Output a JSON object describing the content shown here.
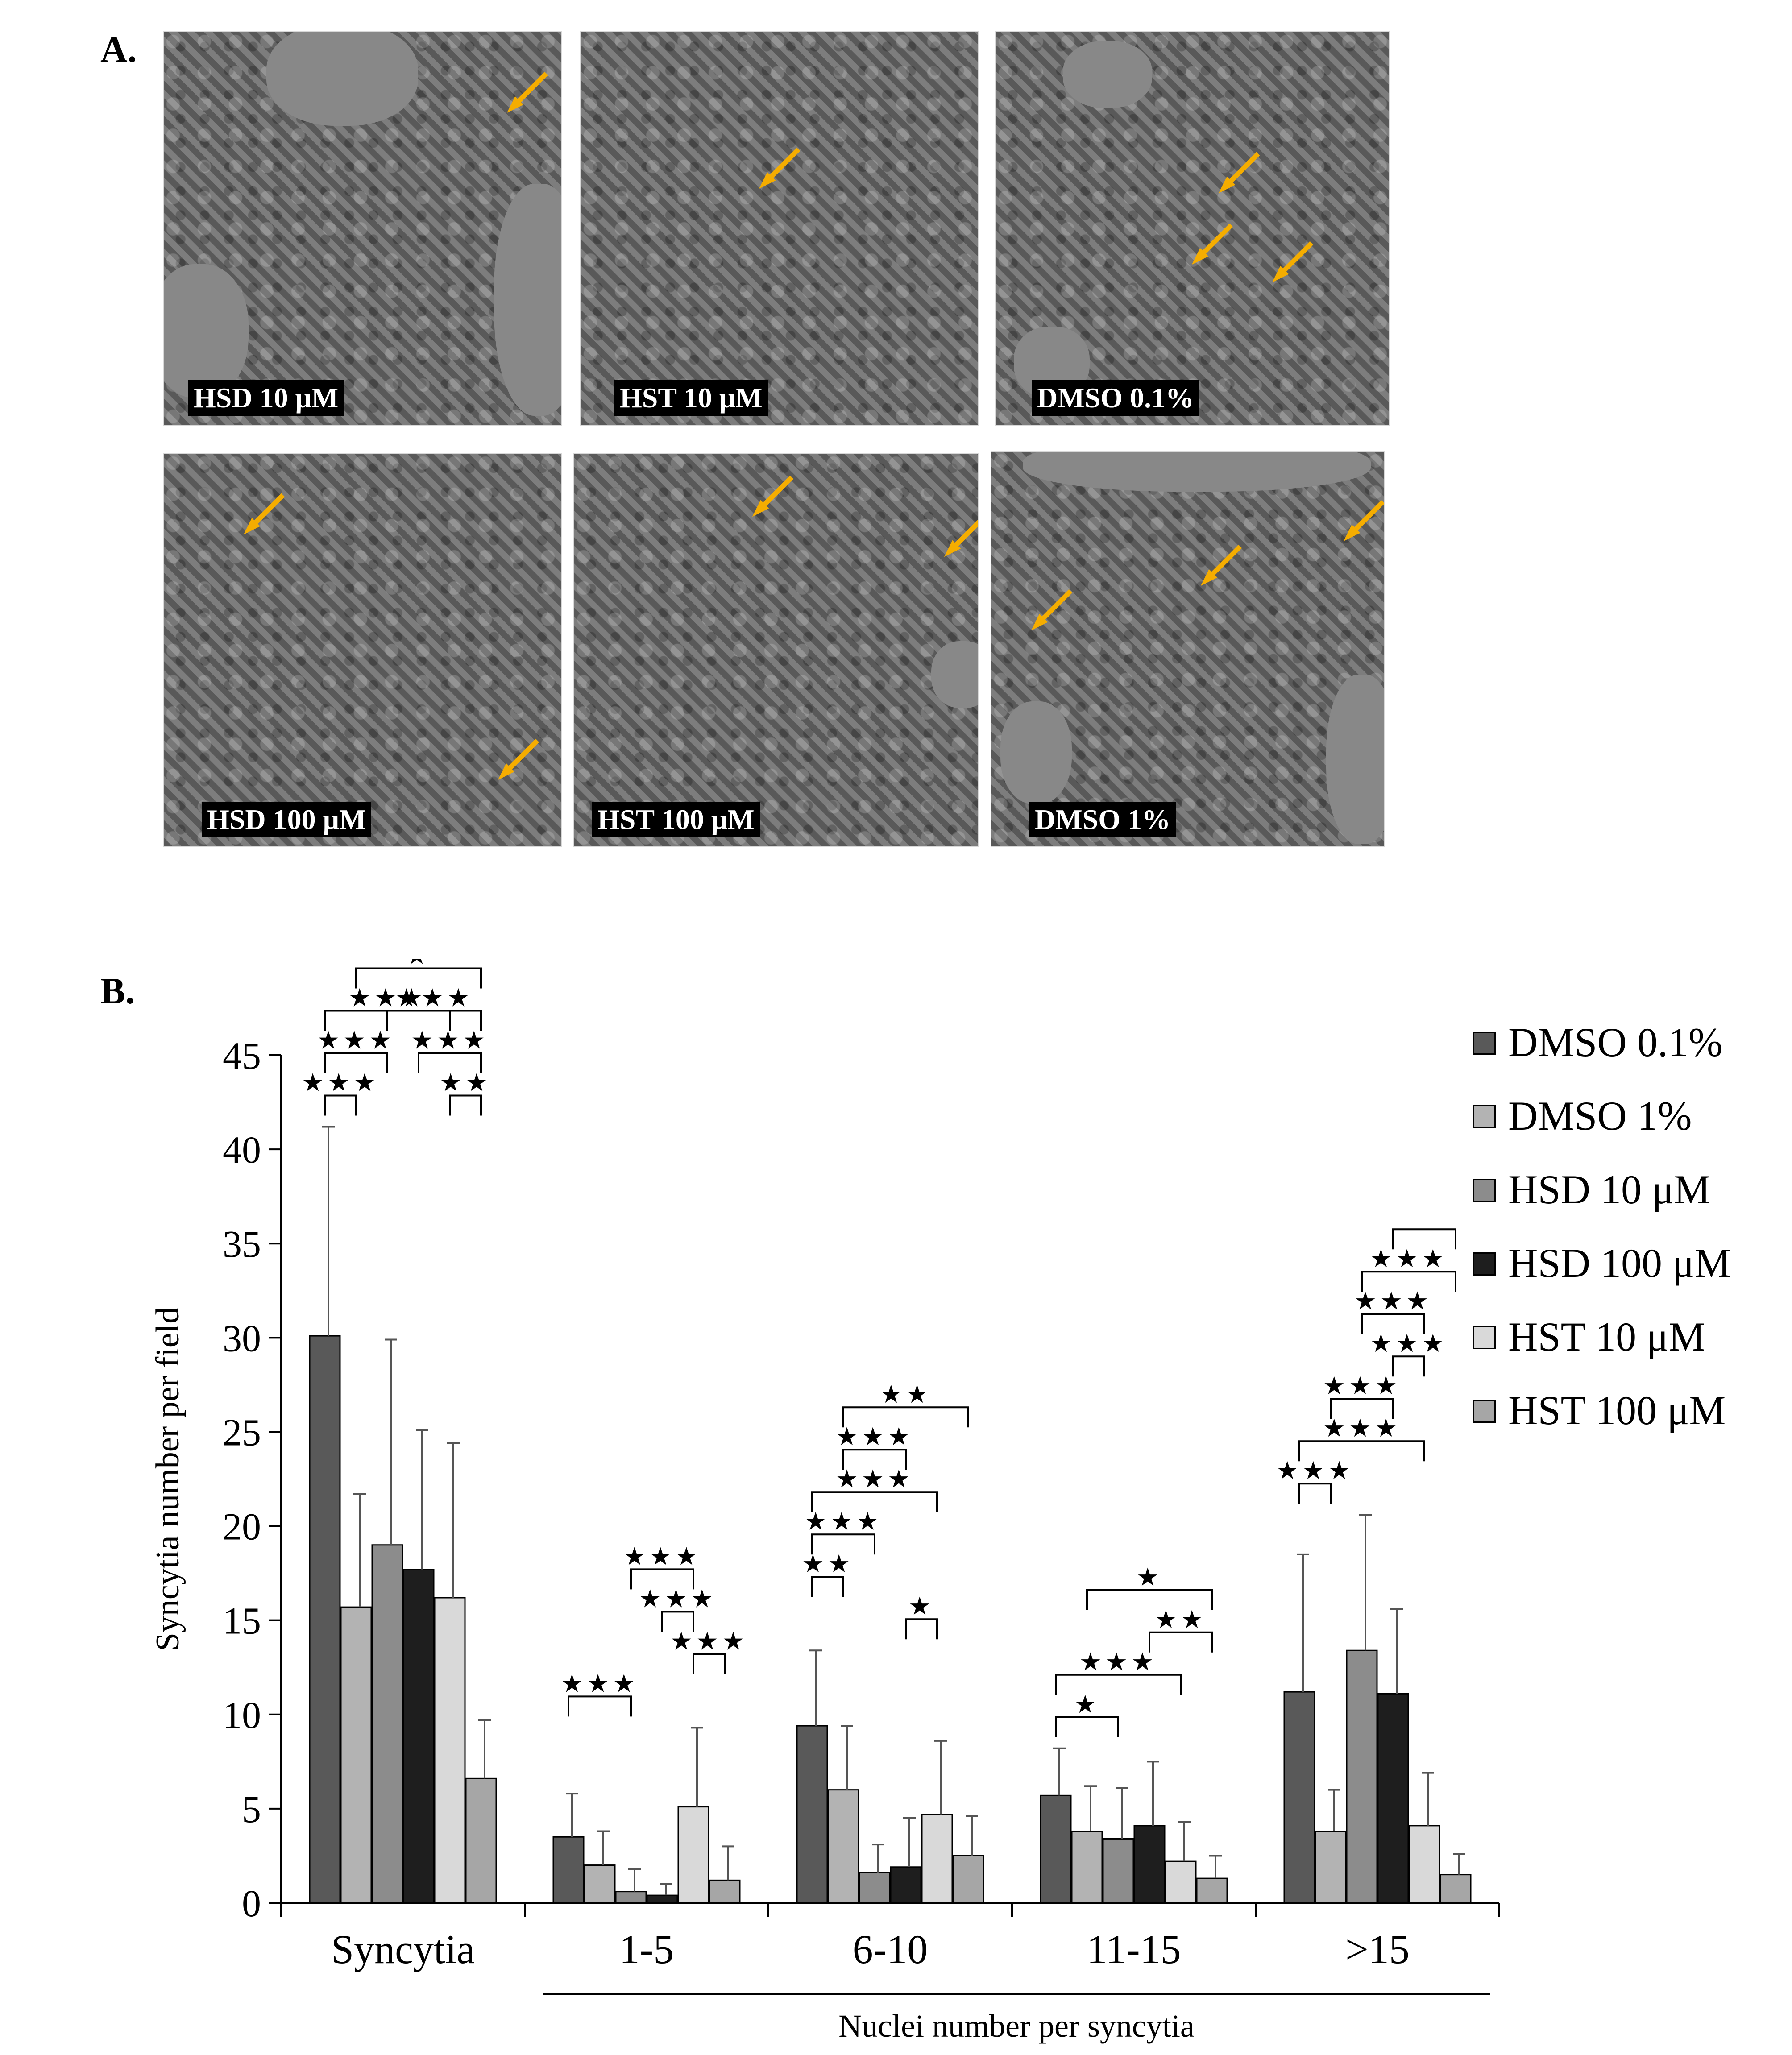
{
  "panel_a": {
    "letter": "A.",
    "images": [
      {
        "label": "HSD 10 μM"
      },
      {
        "label": "HST 10 μM"
      },
      {
        "label": "DMSO 0.1%"
      },
      {
        "label": "HSD 100 μM"
      },
      {
        "label": "HST 100 μM"
      },
      {
        "label": "DMSO 1%"
      }
    ],
    "arrow_color": "#F5AD00"
  },
  "panel_b": {
    "letter": "B."
  },
  "chart_data": {
    "type": "bar",
    "title": "",
    "ylabel": "Syncytia number per field",
    "xlabel": "Nuclei number per syncytia",
    "ylim": [
      0,
      45
    ],
    "yticks": [
      0,
      5,
      10,
      15,
      20,
      25,
      30,
      35,
      40,
      45
    ],
    "categories": [
      "Syncytia",
      "1-5",
      "6-10",
      "11-15",
      ">15"
    ],
    "xlabel_covers": [
      "1-5",
      "6-10",
      "11-15",
      ">15"
    ],
    "series": [
      {
        "name": "DMSO 0.1%",
        "color": "#595959",
        "values": [
          30.1,
          3.5,
          9.4,
          5.7,
          11.2
        ],
        "errors": [
          11.1,
          2.3,
          4.0,
          2.5,
          7.3
        ]
      },
      {
        "name": "DMSO 1%",
        "color": "#b3b3b3",
        "values": [
          15.7,
          2.0,
          6.0,
          3.8,
          3.8
        ],
        "errors": [
          6.0,
          1.8,
          3.4,
          2.4,
          2.2
        ]
      },
      {
        "name": "HSD 10 μM",
        "color": "#8c8c8c",
        "values": [
          19.0,
          0.6,
          1.6,
          3.4,
          13.4
        ],
        "errors": [
          10.9,
          1.2,
          1.5,
          2.7,
          7.2
        ]
      },
      {
        "name": "HSD 100 μM",
        "color": "#1e1e1e",
        "values": [
          17.7,
          0.4,
          1.9,
          4.1,
          11.1
        ],
        "errors": [
          7.4,
          0.6,
          2.6,
          3.4,
          4.5
        ]
      },
      {
        "name": "HST 10 μM",
        "color": "#d9d9d9",
        "values": [
          16.2,
          5.1,
          4.7,
          2.2,
          4.1
        ],
        "errors": [
          8.2,
          4.2,
          3.9,
          2.1,
          2.8
        ]
      },
      {
        "name": "HST 100 μM",
        "color": "#a6a6a6",
        "values": [
          6.6,
          1.2,
          2.5,
          1.3,
          1.5
        ],
        "errors": [
          3.1,
          1.8,
          2.1,
          1.2,
          1.1
        ]
      }
    ],
    "legend_position": "right",
    "significance": [
      {
        "category": 0,
        "from": 0,
        "to": 1,
        "mark": "★★★",
        "level": 1
      },
      {
        "category": 0,
        "from": 0,
        "to": 2,
        "mark": "★★★",
        "level": 2
      },
      {
        "category": 0,
        "from": 0,
        "to": 4,
        "mark": "★★★",
        "level": 3
      },
      {
        "category": 0,
        "from": 4,
        "to": 5,
        "mark": "★★",
        "level": 1
      },
      {
        "category": 0,
        "from": 3,
        "to": 5,
        "mark": "★★★",
        "level": 2
      },
      {
        "category": 0,
        "from": 2,
        "to": 5,
        "mark": "★★★",
        "level": 3
      },
      {
        "category": 0,
        "from": 1,
        "to": 5,
        "mark": "★",
        "level": 4
      },
      {
        "category": 1,
        "from": 0,
        "to": 2,
        "mark": "★★★",
        "level": 1
      },
      {
        "category": 1,
        "from": 4,
        "to": 5,
        "mark": "★★★",
        "level": 2
      },
      {
        "category": 1,
        "from": 3,
        "to": 4,
        "mark": "★★★",
        "level": 3
      },
      {
        "category": 1,
        "from": 2,
        "to": 4,
        "mark": "★★★",
        "level": 4
      },
      {
        "category": 2,
        "from": 3,
        "to": 4,
        "mark": "★",
        "level": 1
      },
      {
        "category": 2,
        "from": 0,
        "to": 1,
        "mark": "★★",
        "level": 2
      },
      {
        "category": 2,
        "from": 0,
        "to": 2,
        "mark": "★★★",
        "level": 3
      },
      {
        "category": 2,
        "from": 0,
        "to": 4,
        "mark": "★★★",
        "level": 4
      },
      {
        "category": 2,
        "from": 1,
        "to": 3,
        "mark": "★★★",
        "level": 5
      },
      {
        "category": 2,
        "from": 1,
        "to": 5,
        "mark": "★★",
        "level": 6
      },
      {
        "category": 3,
        "from": 0,
        "to": 2,
        "mark": "★",
        "level": 1
      },
      {
        "category": 3,
        "from": 0,
        "to": 4,
        "mark": "★★★",
        "level": 2
      },
      {
        "category": 3,
        "from": 3,
        "to": 5,
        "mark": "★★",
        "level": 3
      },
      {
        "category": 3,
        "from": 1,
        "to": 5,
        "mark": "★",
        "level": 4
      },
      {
        "category": 4,
        "from": 0,
        "to": 1,
        "mark": "★★★",
        "level": 1
      },
      {
        "category": 4,
        "from": 0,
        "to": 4,
        "mark": "★★★",
        "level": 2
      },
      {
        "category": 4,
        "from": 1,
        "to": 3,
        "mark": "★★★",
        "level": 3
      },
      {
        "category": 4,
        "from": 3,
        "to": 4,
        "mark": "★★★",
        "level": 4
      },
      {
        "category": 4,
        "from": 2,
        "to": 4,
        "mark": "★★★",
        "level": 5
      },
      {
        "category": 4,
        "from": 2,
        "to": 5,
        "mark": "★★★",
        "level": 6
      },
      {
        "category": 4,
        "from": 3,
        "to": 5,
        "mark": "",
        "level": 7
      }
    ]
  }
}
